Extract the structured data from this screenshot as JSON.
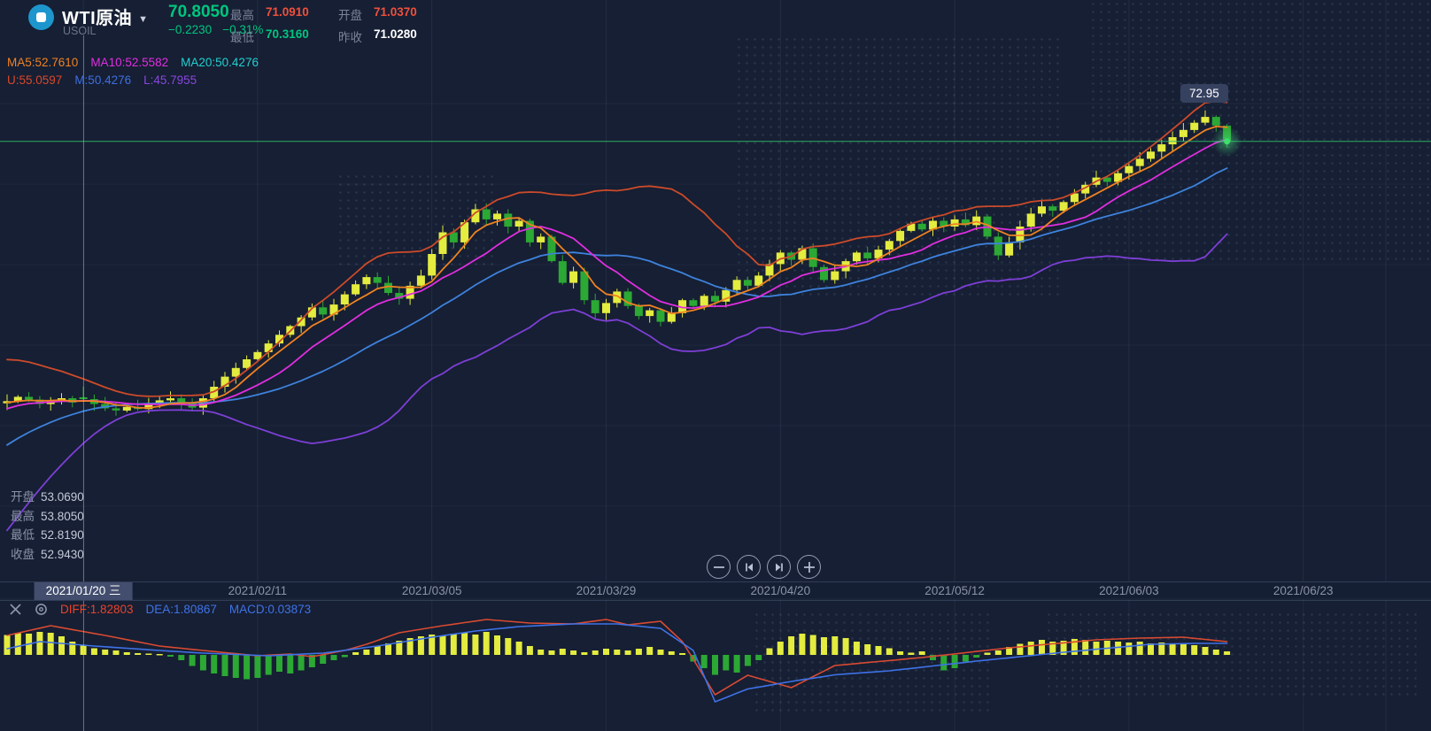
{
  "header": {
    "symbol": "WTI原油",
    "code": "USOIL",
    "price": "70.8050",
    "change": "−0.2230",
    "change_pct": "−0.31%",
    "stats": [
      {
        "label": "最高",
        "value": "71.0910",
        "color": "#f0503c"
      },
      {
        "label": "开盘",
        "value": "71.0370",
        "color": "#f0503c"
      },
      {
        "label": "最低",
        "value": "70.3160",
        "color": "#00c57f"
      },
      {
        "label": "昨收",
        "value": "71.0280",
        "color": "#ffffff"
      }
    ]
  },
  "indicators": {
    "ma_row": [
      {
        "text": "MA5:52.7610",
        "color": "#f08222"
      },
      {
        "text": "MA10:52.5582",
        "color": "#e02ee0"
      },
      {
        "text": "MA20:50.4276",
        "color": "#22cfcf"
      }
    ],
    "boll_row": [
      {
        "text": "U:55.0597",
        "color": "#d9472b"
      },
      {
        "text": "M:50.4276",
        "color": "#3e6fe0"
      },
      {
        "text": "L:45.7955",
        "color": "#8a46e0"
      }
    ]
  },
  "tooltip": {
    "rows": [
      {
        "label": "开盘",
        "value": "53.0690"
      },
      {
        "label": "最高",
        "value": "53.8050"
      },
      {
        "label": "最低",
        "value": "52.8190"
      },
      {
        "label": "收盘",
        "value": "52.9430"
      }
    ]
  },
  "price_marker": "72.95",
  "axis": {
    "dates": [
      {
        "label": "2021/01/20 三",
        "tick": 7,
        "selected": true
      },
      {
        "label": "2021/02/11",
        "tick": 23
      },
      {
        "label": "2021/03/05",
        "tick": 39
      },
      {
        "label": "2021/03/29",
        "tick": 55
      },
      {
        "label": "2021/04/20",
        "tick": 71
      },
      {
        "label": "2021/05/12",
        "tick": 87
      },
      {
        "label": "2021/06/03",
        "tick": 103
      },
      {
        "label": "2021/06/23",
        "tick": 119
      }
    ]
  },
  "controls": [
    {
      "name": "zoom-out",
      "icon": "minus"
    },
    {
      "name": "step-back",
      "icon": "skip-back"
    },
    {
      "name": "step-forward",
      "icon": "skip-forward"
    },
    {
      "name": "zoom-in",
      "icon": "plus"
    }
  ],
  "macd_labels": [
    {
      "text": "DIFF:1.82803",
      "color": "#e8432c"
    },
    {
      "text": "DEA:1.80867",
      "color": "#3f72e8"
    },
    {
      "text": "MACD:0.03873",
      "color": "#3f72e8"
    }
  ],
  "chart_data": {
    "type": "candlestick",
    "symbol": "USOIL",
    "timeframe": "daily",
    "current_price": 70.805,
    "highest_visible": 72.95,
    "selected_candle": {
      "date": "2021/01/20",
      "open": 53.069,
      "high": 53.805,
      "low": 52.819,
      "close": 52.943
    },
    "x_ticks": [
      "2021/01/20",
      "2021/02/11",
      "2021/03/05",
      "2021/03/29",
      "2021/04/20",
      "2021/05/12",
      "2021/06/03",
      "2021/06/23"
    ],
    "ylim_est": [
      44,
      74
    ],
    "pre_closes": [
      43.0,
      43.8,
      44.6,
      45.4,
      46.2,
      47.0,
      47.7,
      48.4,
      49.1,
      49.8,
      50.4,
      51.0,
      51.5,
      52.0,
      52.3,
      52.5,
      52.6,
      52.65,
      52.7,
      52.75
    ],
    "closes": [
      52.8,
      53.1,
      52.9,
      52.6,
      52.8,
      53.0,
      52.7,
      52.94,
      52.6,
      52.3,
      52.15,
      52.4,
      52.25,
      52.6,
      52.85,
      53.0,
      52.65,
      52.35,
      53.0,
      53.8,
      54.5,
      55.1,
      55.7,
      56.2,
      56.8,
      57.4,
      58.0,
      58.6,
      59.3,
      58.8,
      59.5,
      60.2,
      60.9,
      61.4,
      61.0,
      60.3,
      59.9,
      60.8,
      61.5,
      63.0,
      64.5,
      63.8,
      65.2,
      66.1,
      65.4,
      65.8,
      64.9,
      65.3,
      63.8,
      64.2,
      62.5,
      61.0,
      61.8,
      59.8,
      58.9,
      59.6,
      60.4,
      59.4,
      58.7,
      59.1,
      58.3,
      58.9,
      59.8,
      59.4,
      60.1,
      59.7,
      60.5,
      61.2,
      60.8,
      61.5,
      62.3,
      63.1,
      62.6,
      63.4,
      62.1,
      61.2,
      61.8,
      62.5,
      63.1,
      62.7,
      63.3,
      63.9,
      64.6,
      65.1,
      64.7,
      65.3,
      64.9,
      65.4,
      65.0,
      65.6,
      64.2,
      62.9,
      63.8,
      64.9,
      65.8,
      66.3,
      66.0,
      66.6,
      67.2,
      67.8,
      68.3,
      68.0,
      68.6,
      69.1,
      69.6,
      70.1,
      70.6,
      71.1,
      71.6,
      72.1,
      72.5,
      71.9,
      70.8
    ],
    "macd_hist": [
      0.45,
      0.5,
      0.48,
      0.52,
      0.5,
      0.42,
      0.3,
      0.22,
      0.15,
      0.12,
      0.1,
      0.06,
      0.04,
      0.03,
      0.02,
      -0.04,
      -0.12,
      -0.25,
      -0.35,
      -0.42,
      -0.48,
      -0.52,
      -0.55,
      -0.52,
      -0.45,
      -0.38,
      -0.42,
      -0.35,
      -0.28,
      -0.2,
      -0.12,
      -0.05,
      0.06,
      0.12,
      0.2,
      0.26,
      0.32,
      0.38,
      0.42,
      0.46,
      0.44,
      0.48,
      0.5,
      0.46,
      0.52,
      0.44,
      0.38,
      0.3,
      0.2,
      0.12,
      0.1,
      0.14,
      0.1,
      0.06,
      0.1,
      0.14,
      0.12,
      0.1,
      0.14,
      0.18,
      0.12,
      0.08,
      0.04,
      -0.15,
      -0.3,
      -0.45,
      -0.35,
      -0.4,
      -0.25,
      -0.12,
      0.15,
      0.3,
      0.42,
      0.48,
      0.45,
      0.4,
      0.42,
      0.38,
      0.3,
      0.24,
      0.2,
      0.15,
      0.08,
      0.05,
      0.08,
      -0.12,
      -0.35,
      -0.3,
      -0.15,
      -0.06,
      0.05,
      0.1,
      0.18,
      0.25,
      0.3,
      0.34,
      0.3,
      0.32,
      0.36,
      0.34,
      0.3,
      0.32,
      0.3,
      0.28,
      0.3,
      0.26,
      0.28,
      0.24,
      0.26,
      0.22,
      0.18,
      0.12,
      0.08
    ],
    "diff_anchors": [
      [
        0,
        0.44
      ],
      [
        4,
        0.66
      ],
      [
        9,
        0.44
      ],
      [
        14,
        0.2
      ],
      [
        18,
        0.1
      ],
      [
        23,
        -0.02
      ],
      [
        26,
        0.02
      ],
      [
        28,
        -0.04
      ],
      [
        31,
        0.1
      ],
      [
        33,
        0.24
      ],
      [
        36,
        0.5
      ],
      [
        40,
        0.66
      ],
      [
        44,
        0.8
      ],
      [
        48,
        0.72
      ],
      [
        52,
        0.7
      ],
      [
        55,
        0.8
      ],
      [
        57,
        0.68
      ],
      [
        60,
        0.76
      ],
      [
        62,
        0.3
      ],
      [
        65,
        -0.9
      ],
      [
        68,
        -0.46
      ],
      [
        72,
        -0.74
      ],
      [
        76,
        -0.24
      ],
      [
        80,
        -0.15
      ],
      [
        84,
        -0.06
      ],
      [
        88,
        0.05
      ],
      [
        92,
        0.16
      ],
      [
        96,
        0.25
      ],
      [
        100,
        0.34
      ],
      [
        104,
        0.38
      ],
      [
        108,
        0.4
      ],
      [
        112,
        0.3
      ]
    ],
    "dea_anchors": [
      [
        0,
        0.14
      ],
      [
        3,
        0.3
      ],
      [
        8,
        0.2
      ],
      [
        14,
        0.1
      ],
      [
        18,
        0.04
      ],
      [
        24,
        -0.02
      ],
      [
        29,
        0.04
      ],
      [
        34,
        0.2
      ],
      [
        39,
        0.4
      ],
      [
        43,
        0.54
      ],
      [
        47,
        0.64
      ],
      [
        52,
        0.7
      ],
      [
        56,
        0.7
      ],
      [
        60,
        0.6
      ],
      [
        63,
        0.1
      ],
      [
        65,
        -1.06
      ],
      [
        68,
        -0.77
      ],
      [
        72,
        -0.6
      ],
      [
        76,
        -0.45
      ],
      [
        81,
        -0.36
      ],
      [
        85,
        -0.25
      ],
      [
        89,
        -0.14
      ],
      [
        93,
        -0.04
      ],
      [
        97,
        0.06
      ],
      [
        101,
        0.15
      ],
      [
        105,
        0.24
      ],
      [
        109,
        0.26
      ],
      [
        112,
        0.26
      ]
    ],
    "colors": {
      "up": "#e3ec3f",
      "down": "#2ca834",
      "ma5": "#f08222",
      "ma10": "#e02ee0",
      "ma20_mid": "#3e82dd",
      "boll_upper": "#cc4a2a",
      "boll_lower": "#7d3fd6",
      "price_line": "#2fbf6c",
      "macd_diff": "#d94a32",
      "macd_dea": "#3f72e8"
    }
  }
}
